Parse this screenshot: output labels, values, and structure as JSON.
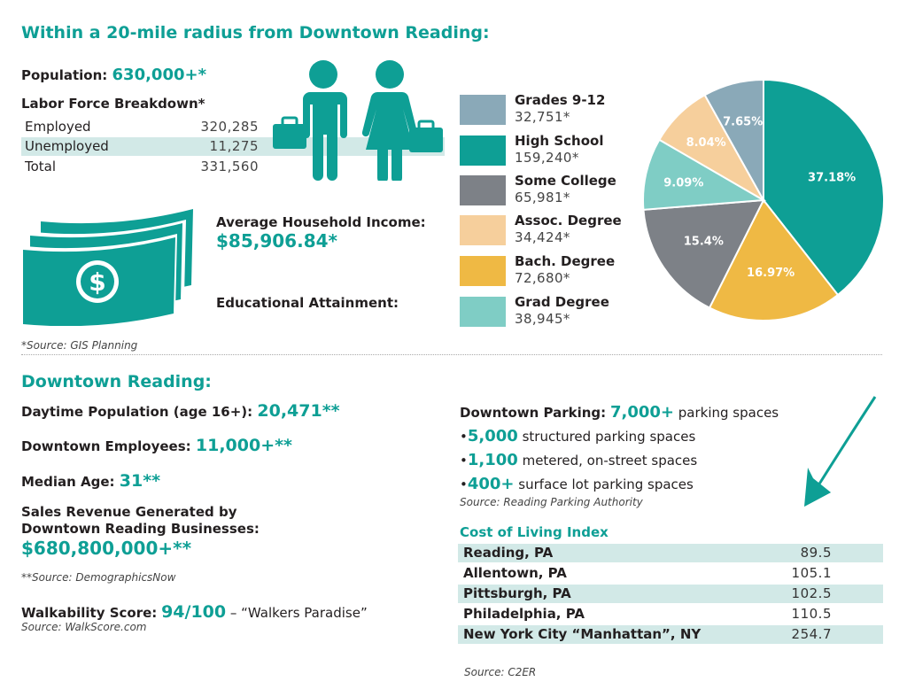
{
  "region": {
    "heading": "Within a 20-mile radius from Downtown Reading:",
    "population_label": "Population:",
    "population_value": "630,000+*",
    "labor_heading": "Labor Force Breakdown*",
    "labor_rows": [
      {
        "label": "Employed",
        "value": "320,285"
      },
      {
        "label": "Unemployed",
        "value": "11,275"
      },
      {
        "label": "Total",
        "value": "331,560"
      }
    ],
    "income_label": "Average Household Income:",
    "income_value": "$85,906.84*",
    "edu_label": "Educational Attainment:",
    "source": "*Source: GIS Planning"
  },
  "colors": {
    "teal": "#0e9f95",
    "slate_blue": "#8aa9b8",
    "gray": "#7d8187",
    "peach": "#f6cf9c",
    "gold": "#efb944",
    "light_teal": "#7fcdc5",
    "band": "#d2e9e7"
  },
  "chart_data": {
    "type": "pie",
    "title": "",
    "slices": [
      {
        "label": "Grades 9-12",
        "count": "32,751*",
        "percent": 7.65,
        "percent_label": "7.65%",
        "color": "#8aa9b8"
      },
      {
        "label": "High School",
        "count": "159,240*",
        "percent": 37.18,
        "percent_label": "37.18%",
        "color": "#0e9f95"
      },
      {
        "label": "Some College",
        "count": "65,981*",
        "percent": 15.4,
        "percent_label": "15.4%",
        "color": "#7d8187"
      },
      {
        "label": "Assoc. Degree",
        "count": "34,424*",
        "percent": 8.04,
        "percent_label": "8.04%",
        "color": "#f6cf9c"
      },
      {
        "label": "Bach. Degree",
        "count": "72,680*",
        "percent": 16.97,
        "percent_label": "16.97%",
        "color": "#efb944"
      },
      {
        "label": "Grad Degree",
        "count": "38,945*",
        "percent": 9.09,
        "percent_label": "9.09%",
        "color": "#7fcdc5"
      }
    ],
    "draw_order": [
      "High School",
      "Bach. Degree",
      "Some College",
      "Grad Degree",
      "Assoc. Degree",
      "Grades 9-12"
    ],
    "legend_placement": "left"
  },
  "downtown": {
    "heading": "Downtown Reading:",
    "daytime_label": "Daytime Population (age 16+):",
    "daytime_value": "20,471**",
    "employees_label": "Downtown Employees:",
    "employees_value": "11,000+**",
    "median_label": "Median Age:",
    "median_value": "31**",
    "sales_label_1": "Sales Revenue Generated by",
    "sales_label_2": "Downtown Reading Businesses:",
    "sales_value": "$680,800,000+**",
    "source": "**Source: DemographicsNow",
    "walk_label": "Walkability Score:",
    "walk_value": "94/100",
    "walk_desc": "– “Walkers Paradise”",
    "walk_source": "Source: WalkScore.com"
  },
  "parking": {
    "label": "Downtown Parking:",
    "total": "7,000+",
    "total_desc": "parking spaces",
    "items": [
      {
        "num": "5,000",
        "desc": "structured parking spaces"
      },
      {
        "num": "1,100",
        "desc": "metered, on-street spaces"
      },
      {
        "num": "400+",
        "desc": "surface lot parking spaces"
      }
    ],
    "bullet": "•",
    "source": "Source: Reading Parking Authority"
  },
  "cost_of_living": {
    "heading": "Cost of Living Index",
    "rows": [
      {
        "city": "Reading, PA",
        "value": "89.5"
      },
      {
        "city": "Allentown, PA",
        "value": "105.1"
      },
      {
        "city": "Pittsburgh, PA",
        "value": "102.5"
      },
      {
        "city": "Philadelphia, PA",
        "value": "110.5"
      },
      {
        "city": "New York City “Manhattan”, NY",
        "value": "254.7"
      }
    ],
    "source": "Source: C2ER"
  }
}
